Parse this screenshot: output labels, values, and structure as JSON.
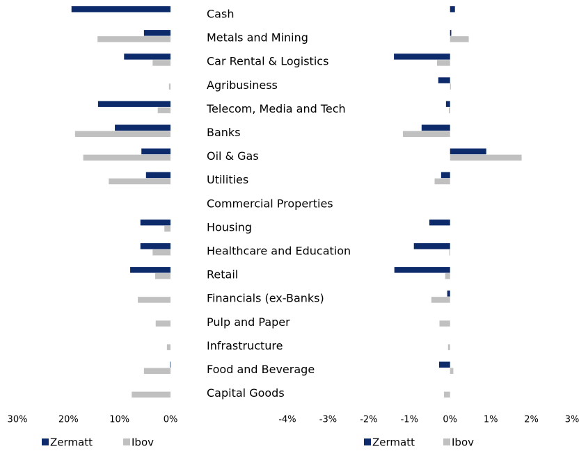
{
  "chart_data": [
    {
      "type": "bar",
      "orientation": "horizontal",
      "categories": [
        "Cash",
        "Metals and Mining",
        "Car Rental & Logistics",
        "Agribusiness",
        "Telecom, Media and Tech",
        "Banks",
        "Oil & Gas",
        "Utilities",
        "Commercial Properties",
        "Housing",
        "Healthcare and Education",
        "Retail",
        "Financials (ex-Banks)",
        "Pulp and Paper",
        "Infrastructure",
        "Food and Beverage",
        "Capital Goods"
      ],
      "series": [
        {
          "name": "Zermatt",
          "color": "#0d2a6b",
          "values": [
            19.4,
            5.2,
            9.1,
            0,
            14.2,
            10.9,
            5.7,
            4.8,
            0,
            5.9,
            5.9,
            7.9,
            0,
            0,
            0,
            0.1,
            0
          ]
        },
        {
          "name": "Ibov",
          "color": "#c0c0c0",
          "values": [
            0,
            14.3,
            3.5,
            0.3,
            2.5,
            18.7,
            17.1,
            12.1,
            0,
            1.2,
            3.5,
            3.0,
            6.4,
            2.9,
            0.7,
            5.2,
            7.6
          ]
        }
      ],
      "xlim": [
        30,
        0
      ],
      "xticks": [
        {
          "value": 30,
          "label": "30%"
        },
        {
          "value": 20,
          "label": "20%"
        },
        {
          "value": 10,
          "label": "10%"
        },
        {
          "value": 0,
          "label": "0%"
        }
      ],
      "legend": "bottom"
    },
    {
      "type": "bar",
      "orientation": "horizontal",
      "series": [
        {
          "name": "Zermatt",
          "color": "#0d2a6b",
          "values": [
            0.12,
            0.03,
            -1.38,
            -0.29,
            -0.1,
            -0.7,
            0.89,
            -0.22,
            0,
            -0.51,
            -0.89,
            -1.37,
            -0.07,
            0,
            0,
            -0.27,
            0
          ]
        },
        {
          "name": "Ibov",
          "color": "#c0c0c0",
          "values": [
            0,
            0.46,
            -0.32,
            0.02,
            -0.03,
            -1.16,
            1.76,
            -0.38,
            0,
            0,
            -0.02,
            -0.12,
            -0.46,
            -0.26,
            -0.05,
            0.08,
            -0.15
          ]
        }
      ],
      "xlim": [
        -4,
        3
      ],
      "xticks": [
        {
          "value": -4,
          "label": "-4%"
        },
        {
          "value": -3,
          "label": "-3%"
        },
        {
          "value": -2,
          "label": "-2%"
        },
        {
          "value": -1,
          "label": "-1%"
        },
        {
          "value": 0,
          "label": "0%"
        },
        {
          "value": 1,
          "label": "1%"
        },
        {
          "value": 2,
          "label": "2%"
        },
        {
          "value": 3,
          "label": "3%"
        }
      ],
      "legend": "bottom"
    }
  ]
}
